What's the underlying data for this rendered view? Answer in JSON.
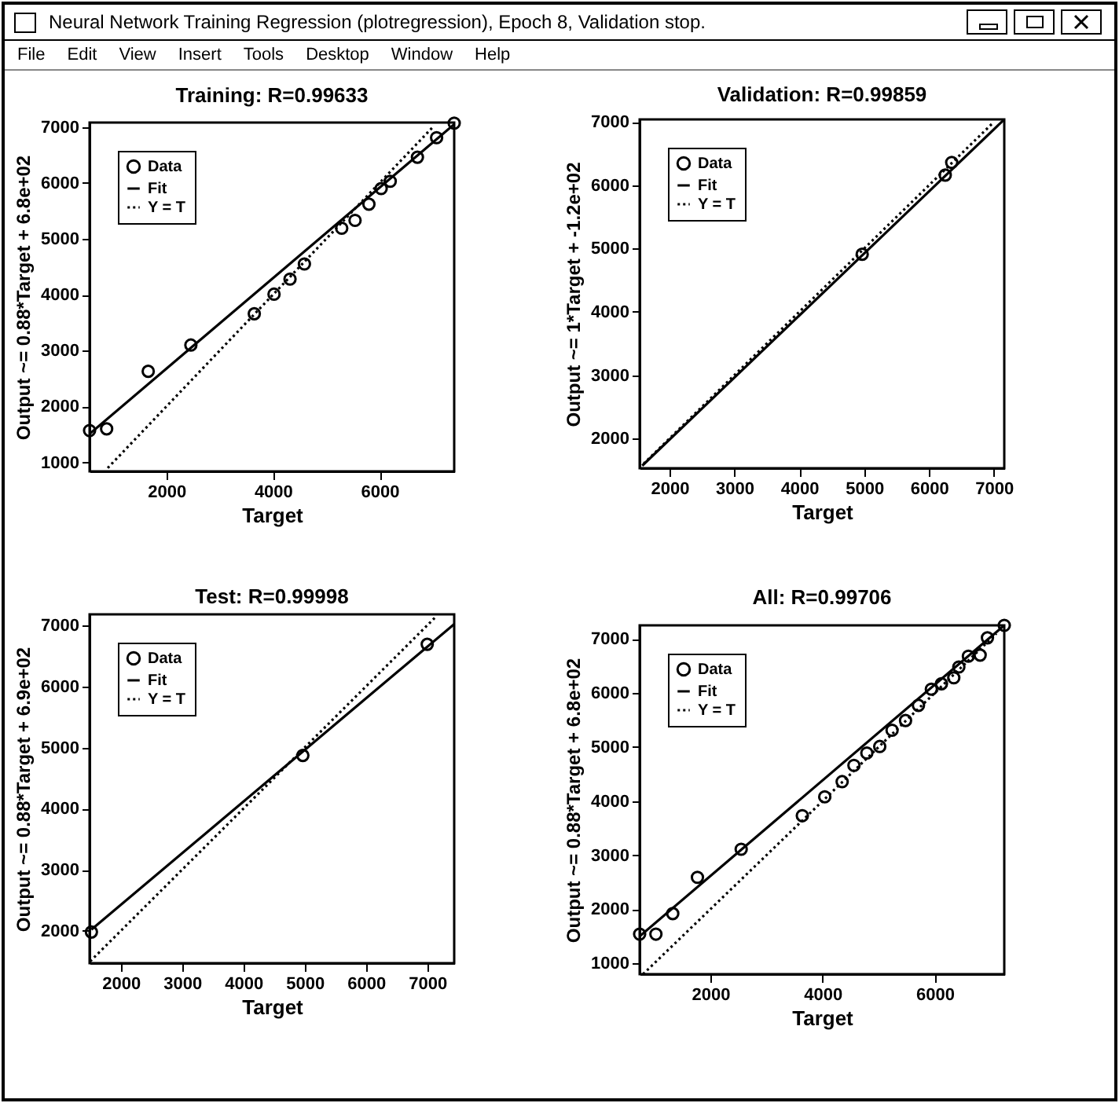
{
  "chart_data": [
    {
      "type": "other",
      "title": "Neural Network Training Regression (plotregression), Epoch 8, Validation stop.",
      "annotations": [
        "File",
        "Edit",
        "View",
        "Insert",
        "Tools",
        "Desktop",
        "Window",
        "Help"
      ]
    },
    {
      "type": "scatter",
      "title": "Training: R=0.99633",
      "xlabel": "Target",
      "ylabel": "Output ~= 0.88*Target + 6.8e+02",
      "xlim": [
        560,
        7400
      ],
      "ylim": [
        840,
        7080
      ],
      "xticks": [
        2000,
        4000,
        6000
      ],
      "yticks": [
        1000,
        2000,
        3000,
        4000,
        5000,
        6000,
        7000
      ],
      "grid": false,
      "legend": "top left",
      "series": [
        {
          "name": "Data",
          "type": "scatter",
          "marker": "circle",
          "color": "#000000",
          "x": [
            560,
            880,
            1660,
            2460,
            3650,
            4020,
            4320,
            4590,
            5290,
            5540,
            5800,
            6030,
            6200,
            6710,
            7070,
            7400
          ],
          "values": [
            1570,
            1600,
            2630,
            3100,
            3660,
            4010,
            4280,
            4550,
            5190,
            5330,
            5620,
            5900,
            6030,
            6460,
            6810,
            7070
          ]
        },
        {
          "name": "Fit",
          "type": "line",
          "line_style": "solid",
          "color": "#000000",
          "x": [
            560,
            7400
          ],
          "values": [
            1510,
            7050
          ]
        },
        {
          "name": "Y = T",
          "type": "line",
          "line_style": "dotted",
          "color": "#000000",
          "x": [
            900,
            7000
          ],
          "values": [
            900,
            7000
          ]
        }
      ]
    },
    {
      "type": "scatter",
      "title": "Validation: R=0.99859",
      "xlabel": "Target",
      "ylabel": "Output ~= 1*Target + -1.2e+02",
      "xlim": [
        1540,
        7160
      ],
      "ylim": [
        1530,
        7040
      ],
      "xticks": [
        2000,
        3000,
        4000,
        5000,
        6000,
        7000
      ],
      "yticks": [
        2000,
        3000,
        4000,
        5000,
        6000,
        7000
      ],
      "grid": false,
      "legend": "top left",
      "series": [
        {
          "name": "Data",
          "type": "scatter",
          "marker": "circle",
          "color": "#000000",
          "x": [
            4970,
            6250,
            6350
          ],
          "values": [
            4910,
            6160,
            6360
          ]
        },
        {
          "name": "Fit",
          "type": "line",
          "line_style": "solid",
          "color": "#000000",
          "x": [
            1580,
            7160
          ],
          "values": [
            1570,
            7040
          ]
        },
        {
          "name": "Y = T",
          "type": "line",
          "line_style": "dotted",
          "color": "#000000",
          "x": [
            1600,
            7000
          ],
          "values": [
            1600,
            7000
          ]
        }
      ]
    },
    {
      "type": "scatter",
      "title": "Test: R=0.99998",
      "xlabel": "Target",
      "ylabel": "Output ~= 0.88*Target + 6.9e+02",
      "xlim": [
        1490,
        7440
      ],
      "ylim": [
        1470,
        7180
      ],
      "xticks": [
        2000,
        3000,
        4000,
        5000,
        6000,
        7000
      ],
      "yticks": [
        2000,
        3000,
        4000,
        5000,
        6000,
        7000
      ],
      "grid": false,
      "legend": "top left",
      "series": [
        {
          "name": "Data",
          "type": "scatter",
          "marker": "circle",
          "color": "#000000",
          "x": [
            1520,
            4970,
            7000
          ],
          "values": [
            1980,
            4870,
            6690
          ]
        },
        {
          "name": "Fit",
          "type": "line",
          "line_style": "solid",
          "color": "#000000",
          "x": [
            1520,
            7440
          ],
          "values": [
            2020,
            7020
          ]
        },
        {
          "name": "Y = T",
          "type": "line",
          "line_style": "dotted",
          "color": "#000000",
          "x": [
            1500,
            7150
          ],
          "values": [
            1500,
            7150
          ]
        }
      ]
    },
    {
      "type": "scatter",
      "title": "All: R=0.99706",
      "xlabel": "Target",
      "ylabel": "Output ~= 0.88*Target + 6.8e+02",
      "xlim": [
        740,
        7240
      ],
      "ylim": [
        800,
        7250
      ],
      "xticks": [
        2000,
        4000,
        6000
      ],
      "yticks": [
        1000,
        2000,
        3000,
        4000,
        5000,
        6000,
        7000
      ],
      "grid": false,
      "legend": "top left",
      "series": [
        {
          "name": "Data",
          "type": "scatter",
          "marker": "circle",
          "color": "#000000",
          "x": [
            740,
            1030,
            1330,
            1770,
            2550,
            3640,
            4040,
            4350,
            4560,
            4790,
            5020,
            5240,
            5480,
            5710,
            5940,
            6120,
            6340,
            6430,
            6600,
            6810,
            6940,
            7240
          ],
          "values": [
            1540,
            1540,
            1920,
            2590,
            3110,
            3730,
            4080,
            4360,
            4660,
            4890,
            5010,
            5310,
            5490,
            5770,
            6070,
            6170,
            6280,
            6480,
            6680,
            6700,
            7020,
            7250
          ]
        },
        {
          "name": "Fit",
          "type": "line",
          "line_style": "solid",
          "color": "#000000",
          "x": [
            740,
            7240
          ],
          "values": [
            1500,
            7250
          ]
        },
        {
          "name": "Y = T",
          "type": "line",
          "line_style": "dotted",
          "color": "#000000",
          "x": [
            800,
            7100
          ],
          "values": [
            800,
            7100
          ]
        }
      ]
    }
  ]
}
